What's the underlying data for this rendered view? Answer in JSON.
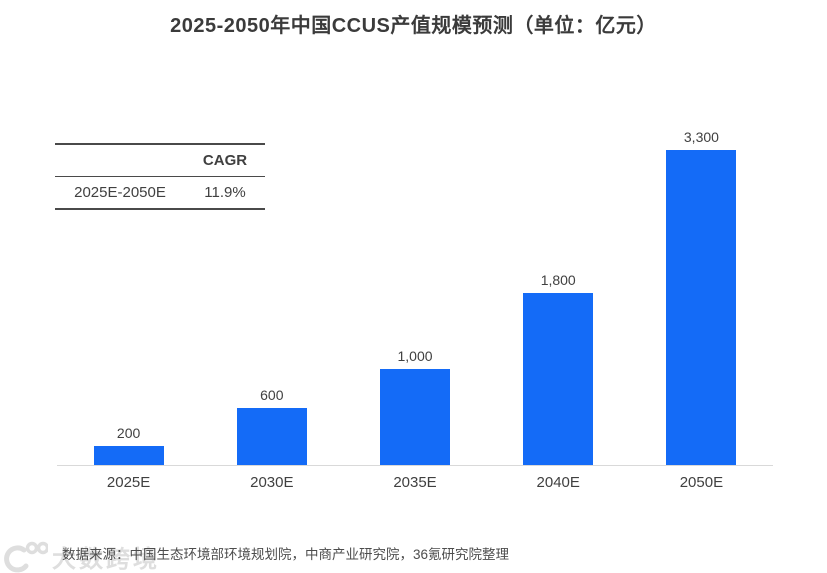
{
  "title": "2025-2050年中国CCUS产值规模预测（单位：亿元）",
  "cagr_table": {
    "header": [
      "",
      "CAGR"
    ],
    "rows": [
      {
        "period": "2025E-2050E",
        "cagr": "11.9%"
      }
    ]
  },
  "chart_data": {
    "type": "bar",
    "title": "2025-2050年中国CCUS产值规模预测（单位：亿元）",
    "unit": "亿元",
    "categories": [
      "2025E",
      "2030E",
      "2035E",
      "2040E",
      "2050E"
    ],
    "values": [
      200,
      600,
      1000,
      1800,
      3300
    ],
    "value_labels": [
      "200",
      "600",
      "1,000",
      "1,800",
      "3,300"
    ],
    "xlabel": "",
    "ylabel": "",
    "ylim": [
      0,
      3560
    ],
    "grid": false,
    "legend": false,
    "bar_color": "#146bf7",
    "axis_line_color": "#d9d9d9"
  },
  "source_note": "数据来源：中国生态环境部环境规划院，中商产业研究院，36氪研究院整理",
  "watermark": {
    "icon": "100-logo",
    "text": "大数跨境"
  },
  "colors": {
    "bar": "#146bf7",
    "text": "#404040",
    "axis": "#d9d9d9",
    "watermark": "#dedede"
  }
}
